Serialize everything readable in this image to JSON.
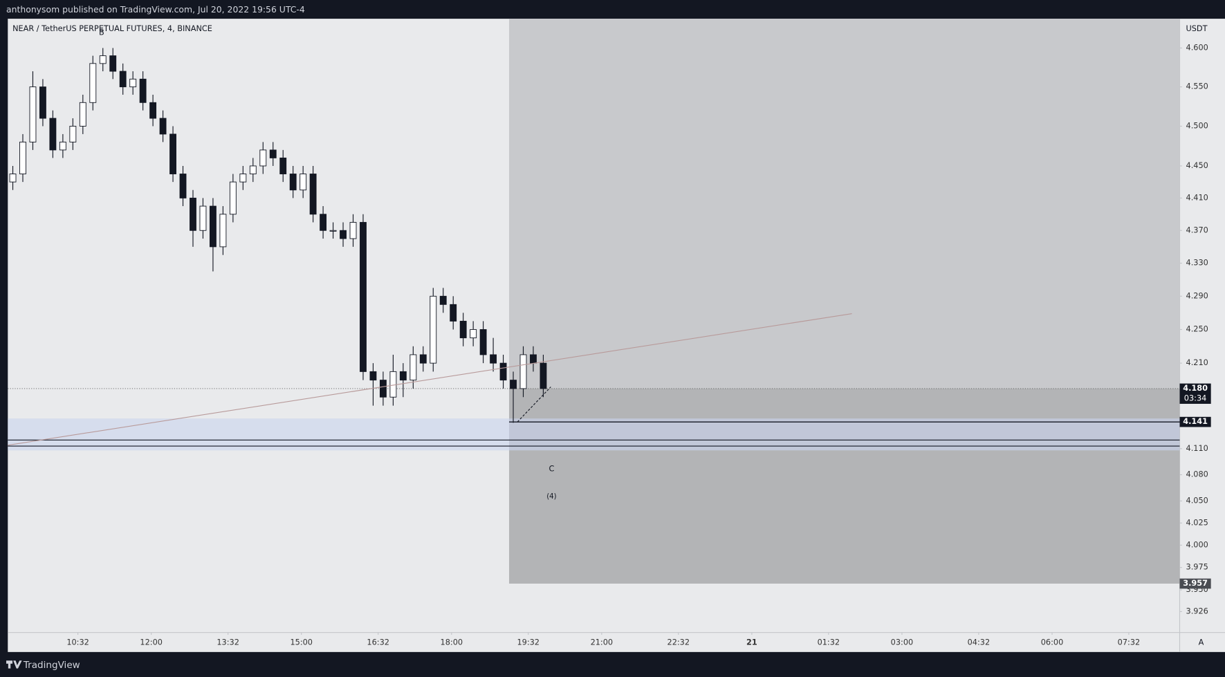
{
  "header": {
    "text": "anthonysom published on TradingView.com, Jul 20, 2022 19:56 UTC-4"
  },
  "footer": {
    "brand": "TradingView"
  },
  "chart_data": {
    "type": "candlestick",
    "title": "NEAR / TetherUS PERPETUAL FUTURES, 4, BINANCE",
    "y_unit": "USDT",
    "scale_mode": "A",
    "log_scale": true,
    "up_color": "#ffffff",
    "down_color": "#131722",
    "wick_color": "#131722",
    "x": [
      554,
      566,
      578,
      590,
      602,
      614,
      626,
      638,
      650,
      662,
      674,
      686,
      698,
      710,
      722,
      734,
      746,
      758,
      770,
      782,
      794,
      806,
      818,
      830,
      842,
      854,
      866,
      878,
      890,
      902,
      914,
      926,
      938,
      950,
      962,
      974,
      986,
      998,
      1010,
      1022,
      1034,
      1046,
      1058,
      1070,
      1082,
      1094,
      1106,
      1118,
      1130,
      1142,
      1154,
      1166,
      1178,
      1190
    ],
    "open": [
      4.43,
      4.44,
      4.48,
      4.55,
      4.51,
      4.47,
      4.48,
      4.5,
      4.53,
      4.58,
      4.59,
      4.57,
      4.55,
      4.56,
      4.53,
      4.51,
      4.49,
      4.44,
      4.41,
      4.37,
      4.4,
      4.35,
      4.39,
      4.43,
      4.44,
      4.45,
      4.47,
      4.46,
      4.44,
      4.42,
      4.44,
      4.39,
      4.37,
      4.37,
      4.36,
      4.38,
      4.2,
      4.19,
      4.17,
      4.2,
      4.19,
      4.22,
      4.21,
      4.29,
      4.28,
      4.26,
      4.24,
      4.25,
      4.22,
      4.21,
      4.19,
      4.18,
      4.22,
      4.21
    ],
    "high": [
      4.45,
      4.49,
      4.57,
      4.56,
      4.52,
      4.49,
      4.51,
      4.54,
      4.59,
      4.6,
      4.6,
      4.58,
      4.57,
      4.57,
      4.54,
      4.52,
      4.5,
      4.45,
      4.42,
      4.41,
      4.41,
      4.4,
      4.44,
      4.45,
      4.46,
      4.48,
      4.48,
      4.47,
      4.45,
      4.45,
      4.45,
      4.4,
      4.38,
      4.38,
      4.39,
      4.39,
      4.21,
      4.2,
      4.22,
      4.21,
      4.23,
      4.23,
      4.3,
      4.3,
      4.29,
      4.27,
      4.26,
      4.26,
      4.24,
      4.22,
      4.2,
      4.23,
      4.23,
      4.22
    ],
    "low": [
      4.42,
      4.43,
      4.47,
      4.5,
      4.46,
      4.46,
      4.47,
      4.49,
      4.52,
      4.57,
      4.56,
      4.54,
      4.54,
      4.52,
      4.5,
      4.48,
      4.43,
      4.4,
      4.35,
      4.36,
      4.32,
      4.34,
      4.38,
      4.42,
      4.43,
      4.44,
      4.45,
      4.43,
      4.41,
      4.41,
      4.38,
      4.36,
      4.36,
      4.35,
      4.35,
      4.19,
      4.16,
      4.16,
      4.16,
      4.17,
      4.18,
      4.2,
      4.2,
      4.27,
      4.25,
      4.23,
      4.23,
      4.21,
      4.2,
      4.18,
      4.14,
      4.17,
      4.2,
      4.17
    ],
    "close": [
      4.44,
      4.48,
      4.55,
      4.51,
      4.47,
      4.48,
      4.5,
      4.53,
      4.58,
      4.59,
      4.57,
      4.55,
      4.56,
      4.53,
      4.51,
      4.49,
      4.44,
      4.41,
      4.37,
      4.4,
      4.35,
      4.39,
      4.43,
      4.44,
      4.45,
      4.47,
      4.46,
      4.44,
      4.42,
      4.44,
      4.39,
      4.37,
      4.37,
      4.36,
      4.38,
      4.2,
      4.19,
      4.17,
      4.2,
      4.19,
      4.22,
      4.21,
      4.29,
      4.28,
      4.26,
      4.24,
      4.25,
      4.22,
      4.21,
      4.19,
      4.18,
      4.22,
      4.21,
      4.18
    ],
    "xlim": [
      548,
      1953
    ],
    "xticks": [
      {
        "value": 632,
        "label": "10:32"
      },
      {
        "value": 720,
        "label": "12:00"
      },
      {
        "value": 812,
        "label": "13:32"
      },
      {
        "value": 900,
        "label": "15:00"
      },
      {
        "value": 992,
        "label": "16:32"
      },
      {
        "value": 1080,
        "label": "18:00"
      },
      {
        "value": 1172,
        "label": "19:32"
      },
      {
        "value": 1260,
        "label": "21:00"
      },
      {
        "value": 1352,
        "label": "22:32"
      },
      {
        "value": 1440,
        "label": "21"
      },
      {
        "value": 1532,
        "label": "01:32"
      },
      {
        "value": 1620,
        "label": "03:00"
      },
      {
        "value": 1712,
        "label": "04:32"
      },
      {
        "value": 1800,
        "label": "06:00"
      },
      {
        "value": 1892,
        "label": "07:32"
      }
    ],
    "ylim": [
      3.903,
      4.638
    ],
    "yticks": [
      {
        "value": 4.6,
        "label": "4.600"
      },
      {
        "value": 4.55,
        "label": "4.550"
      },
      {
        "value": 4.5,
        "label": "4.500"
      },
      {
        "value": 4.45,
        "label": "4.450"
      },
      {
        "value": 4.41,
        "label": "4.410"
      },
      {
        "value": 4.37,
        "label": "4.370"
      },
      {
        "value": 4.33,
        "label": "4.330"
      },
      {
        "value": 4.29,
        "label": "4.290"
      },
      {
        "value": 4.25,
        "label": "4.250"
      },
      {
        "value": 4.21,
        "label": "4.210"
      },
      {
        "value": 4.11,
        "label": "4.110"
      },
      {
        "value": 4.08,
        "label": "4.080"
      },
      {
        "value": 4.05,
        "label": "4.050"
      },
      {
        "value": 4.025,
        "label": "4.025"
      },
      {
        "value": 4.0,
        "label": "4.000"
      },
      {
        "value": 3.975,
        "label": "3.975"
      },
      {
        "value": 3.95,
        "label": "3.950"
      },
      {
        "value": 3.926,
        "label": "3.926"
      }
    ],
    "last_price": {
      "value": 4.18,
      "label": "4.180"
    },
    "countdown": "03:34",
    "annotations": {
      "wave_labels": [
        "B",
        "C",
        "(4)"
      ],
      "box": {
        "x_start": 1149,
        "mid": 4.18,
        "bottom": {
          "value": 3.957,
          "label": "3.957"
        },
        "upper_color": "#c8c9cc",
        "lower_color": "#b3b4b6"
      },
      "level": {
        "value": 4.141,
        "label": "4.141"
      },
      "zone": [
        4.108,
        4.145
      ],
      "zone_color": "#c9d3ee",
      "lines": [
        4.12,
        4.113
      ],
      "trendline": {
        "x": [
          548,
          1560
        ],
        "y": [
          4.114,
          4.269
        ],
        "color": "#b89a9a"
      },
      "dashed": {
        "x": [
          1159,
          1199
        ],
        "y": [
          4.141,
          4.182
        ]
      }
    }
  }
}
